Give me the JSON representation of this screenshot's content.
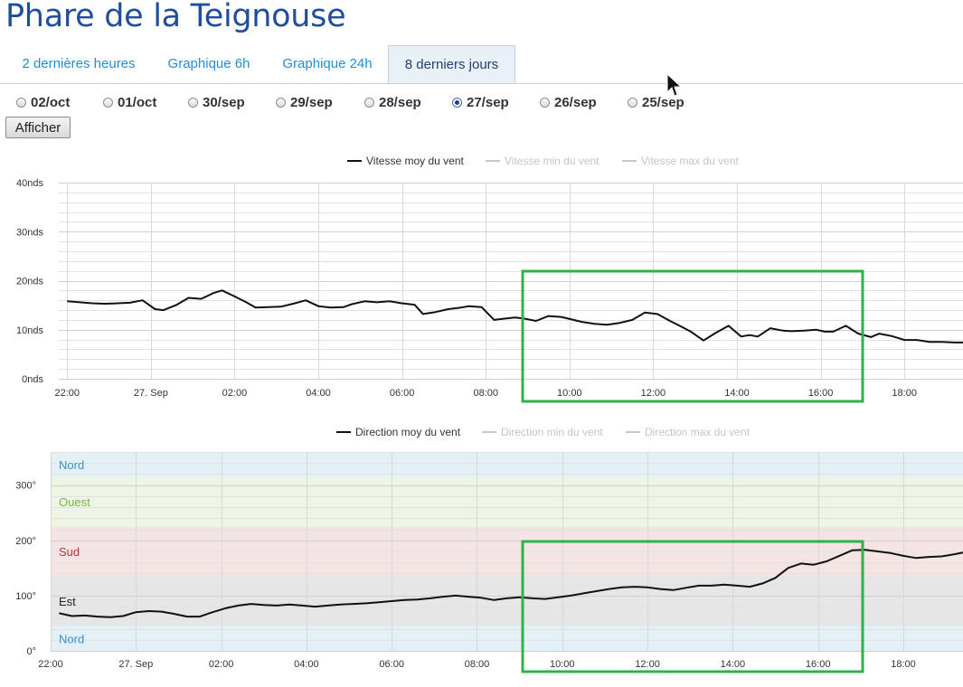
{
  "page": {
    "title": "Phare de la Teignouse"
  },
  "tabs": [
    {
      "label": "2 dernières heures",
      "active": false
    },
    {
      "label": "Graphique 6h",
      "active": false
    },
    {
      "label": "Graphique 24h",
      "active": false
    },
    {
      "label": "8 derniers jours",
      "active": true
    }
  ],
  "dates": [
    {
      "label": "02/oct",
      "checked": false
    },
    {
      "label": "01/oct",
      "checked": false
    },
    {
      "label": "30/sep",
      "checked": false
    },
    {
      "label": "29/sep",
      "checked": false
    },
    {
      "label": "28/sep",
      "checked": false
    },
    {
      "label": "27/sep",
      "checked": true
    },
    {
      "label": "26/sep",
      "checked": false
    },
    {
      "label": "25/sep",
      "checked": false
    }
  ],
  "afficher_label": "Afficher",
  "colors": {
    "title": "#1f4e9b",
    "tab_link": "#1f8ed6",
    "highlight_box": "#2db34a",
    "line": "#111111"
  },
  "chart_data": [
    {
      "type": "line",
      "title": "",
      "legend": [
        "Vitesse moy du vent",
        "Vitesse min du vent",
        "Vitesse max du vent"
      ],
      "legend_enabled": [
        true,
        false,
        false
      ],
      "legend_position": "top-center",
      "x_ticks": [
        "22:00",
        "27. Sep",
        "02:00",
        "04:00",
        "06:00",
        "08:00",
        "10:00",
        "12:00",
        "14:00",
        "16:00",
        "18:00"
      ],
      "xlim_hours": [
        -2.2,
        19.4
      ],
      "y_ticks": [
        "0nds",
        "10nds",
        "20nds",
        "30nds",
        "40nds"
      ],
      "ylim": [
        0,
        40
      ],
      "grid": true,
      "series": [
        {
          "name": "Vitesse moy du vent",
          "x": [
            -2.0,
            -1.7,
            -1.4,
            -1.1,
            -0.8,
            -0.5,
            -0.2,
            0.1,
            0.3,
            0.6,
            0.9,
            1.2,
            1.5,
            1.7,
            2.0,
            2.3,
            2.5,
            2.8,
            3.1,
            3.4,
            3.7,
            4.0,
            4.3,
            4.6,
            4.8,
            5.1,
            5.4,
            5.7,
            6.0,
            6.3,
            6.5,
            6.8,
            7.1,
            7.4,
            7.6,
            7.9,
            8.2,
            8.4,
            8.7,
            8.9,
            9.2,
            9.5,
            9.8,
            10.1,
            10.3,
            10.6,
            10.9,
            11.2,
            11.5,
            11.8,
            12.1,
            12.4,
            12.7,
            12.9,
            13.2,
            13.5,
            13.8,
            14.1,
            14.3,
            14.5,
            14.8,
            15.1,
            15.3,
            15.6,
            15.9,
            16.1,
            16.3,
            16.6,
            16.9,
            17.2,
            17.4,
            17.7,
            18.0,
            18.3,
            18.6,
            18.9,
            19.2,
            19.4
          ],
          "y": [
            15.8,
            15.6,
            15.4,
            15.3,
            15.4,
            15.5,
            16.0,
            14.2,
            14.0,
            15.0,
            16.5,
            16.3,
            17.5,
            18.0,
            16.8,
            15.5,
            14.5,
            14.6,
            14.7,
            15.3,
            16.0,
            14.8,
            14.5,
            14.6,
            15.2,
            15.8,
            15.6,
            15.8,
            15.4,
            15.1,
            13.2,
            13.6,
            14.2,
            14.5,
            14.8,
            14.6,
            12.0,
            12.2,
            12.5,
            12.3,
            11.8,
            12.8,
            12.6,
            12.0,
            11.6,
            11.2,
            11.0,
            11.4,
            12.0,
            13.5,
            13.2,
            11.8,
            10.5,
            9.6,
            7.8,
            9.4,
            10.8,
            8.6,
            8.9,
            8.6,
            10.3,
            9.8,
            9.7,
            9.8,
            10.0,
            9.6,
            9.6,
            10.8,
            9.2,
            8.5,
            9.2,
            8.7,
            7.9,
            7.9,
            7.5,
            7.5,
            7.4,
            7.4
          ]
        }
      ]
    },
    {
      "type": "line",
      "title": "",
      "legend": [
        "Direction moy du vent",
        "Direction min du vent",
        "Direction max du vent"
      ],
      "legend_enabled": [
        true,
        false,
        false
      ],
      "legend_position": "top-center",
      "x_ticks": [
        "22:00",
        "27. Sep",
        "02:00",
        "04:00",
        "06:00",
        "08:00",
        "10:00",
        "12:00",
        "14:00",
        "16:00",
        "18:00"
      ],
      "xlim_hours": [
        -2.0,
        19.4
      ],
      "y_ticks": [
        "0°",
        "100°",
        "200°",
        "300°"
      ],
      "ylim": [
        0,
        360
      ],
      "grid": true,
      "bands": [
        {
          "label": "Nord",
          "from": 0,
          "to": 45,
          "color": "#e3f1f7",
          "label_color": "#3a8fc4"
        },
        {
          "label": "Est",
          "from": 45,
          "to": 135,
          "color": "#e6e6e6",
          "label_color": "#222222"
        },
        {
          "label": "Sud",
          "from": 135,
          "to": 225,
          "color": "#f5e4e4",
          "label_color": "#b33a3a"
        },
        {
          "label": "Ouest",
          "from": 225,
          "to": 315,
          "color": "#eef5e4",
          "label_color": "#7ab648"
        },
        {
          "label": "Nord",
          "from": 315,
          "to": 360,
          "color": "#e3f1f7",
          "label_color": "#3a8fc4"
        }
      ],
      "series": [
        {
          "name": "Direction moy du vent",
          "x": [
            -1.8,
            -1.5,
            -1.2,
            -0.9,
            -0.6,
            -0.3,
            0.0,
            0.3,
            0.6,
            0.9,
            1.2,
            1.5,
            1.8,
            2.1,
            2.4,
            2.7,
            3.0,
            3.3,
            3.6,
            3.9,
            4.2,
            4.5,
            4.8,
            5.1,
            5.4,
            5.7,
            6.0,
            6.3,
            6.6,
            6.9,
            7.2,
            7.5,
            7.8,
            8.1,
            8.4,
            8.7,
            9.0,
            9.3,
            9.6,
            9.9,
            10.2,
            10.5,
            10.8,
            11.1,
            11.4,
            11.7,
            12.0,
            12.3,
            12.6,
            12.9,
            13.2,
            13.5,
            13.8,
            14.1,
            14.4,
            14.7,
            15.0,
            15.3,
            15.6,
            15.9,
            16.2,
            16.5,
            16.8,
            17.1,
            17.4,
            17.7,
            18.0,
            18.3,
            18.6,
            18.9,
            19.2,
            19.4
          ],
          "y": [
            68,
            63,
            64,
            62,
            61,
            63,
            70,
            72,
            71,
            67,
            62,
            62,
            70,
            77,
            82,
            85,
            83,
            82,
            84,
            82,
            80,
            82,
            84,
            85,
            86,
            88,
            90,
            92,
            93,
            95,
            98,
            100,
            98,
            96,
            92,
            95,
            97,
            95,
            94,
            97,
            100,
            104,
            108,
            112,
            115,
            116,
            115,
            112,
            110,
            114,
            118,
            118,
            120,
            118,
            116,
            122,
            132,
            150,
            158,
            156,
            162,
            172,
            182,
            183,
            180,
            177,
            172,
            168,
            170,
            171,
            175,
            178
          ]
        }
      ]
    }
  ]
}
